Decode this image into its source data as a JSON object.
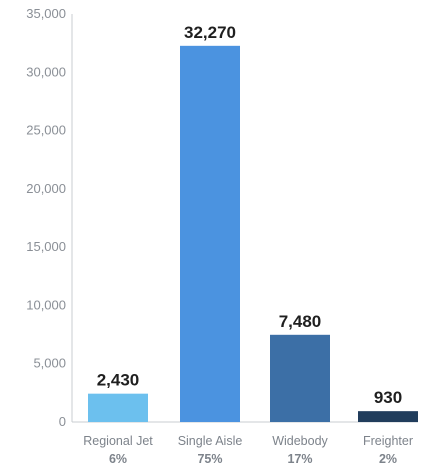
{
  "chart_data": {
    "type": "bar",
    "categories": [
      "Regional Jet",
      "Single Aisle",
      "Widebody",
      "Freighter"
    ],
    "values": [
      2430,
      32270,
      7480,
      930
    ],
    "data_labels": [
      "2,430",
      "32,270",
      "7,480",
      "930"
    ],
    "shares": [
      "6%",
      "75%",
      "17%",
      "2%"
    ],
    "colors": [
      "#6cc0ee",
      "#4b93e0",
      "#3c6fa6",
      "#213d5c"
    ],
    "ylim": [
      0,
      35000
    ],
    "yticks": [
      0,
      5000,
      10000,
      15000,
      20000,
      25000,
      30000,
      35000
    ],
    "ytick_labels": [
      "0",
      "5,000",
      "10,000",
      "15,000",
      "20,000",
      "25,000",
      "30,000",
      "35,000"
    ],
    "grid": false,
    "title": "",
    "xlabel": "",
    "ylabel": ""
  }
}
